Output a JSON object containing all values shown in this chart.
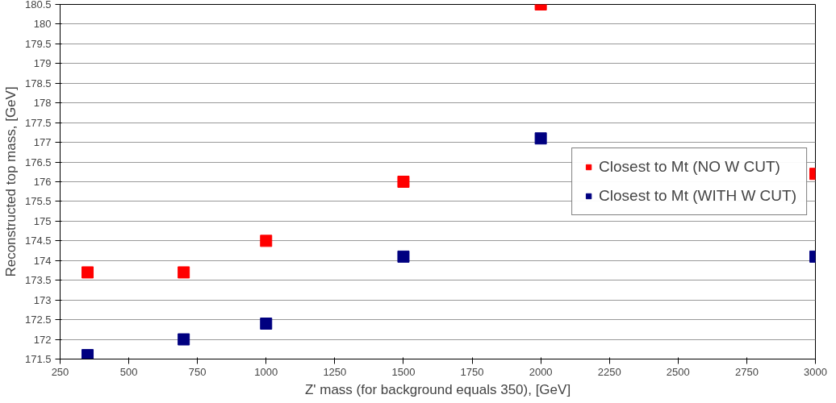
{
  "chart_data": {
    "type": "scatter",
    "xlabel": "Z' mass (for background equals 350), [GeV]",
    "ylabel": "Reconstructed top mass, [GeV]",
    "x": [
      350,
      700,
      1000,
      1500,
      2000,
      3000
    ],
    "series": [
      {
        "name": "Closest to Mt (NO W CUT)",
        "color": "#ff0000",
        "values": [
          173.7,
          173.7,
          174.5,
          176,
          180.5,
          176.2
        ]
      },
      {
        "name": "Closest to Mt (WITH W CUT)",
        "color": "#000080",
        "values": [
          171.6,
          172,
          172.4,
          174.1,
          177.1,
          174.1
        ]
      }
    ],
    "xlim": [
      250,
      3000
    ],
    "ylim": [
      171.5,
      180.5
    ],
    "xticks": [
      250,
      500,
      750,
      1000,
      1250,
      1500,
      1750,
      2000,
      2250,
      2500,
      2750,
      3000
    ],
    "yticks": [
      171.5,
      172,
      172.5,
      173,
      173.5,
      174,
      174.5,
      175,
      175.5,
      176,
      176.5,
      177,
      177.5,
      178,
      178.5,
      179,
      179.5,
      180,
      180.5
    ],
    "grid": "y",
    "legend": "right",
    "marker": "square"
  }
}
